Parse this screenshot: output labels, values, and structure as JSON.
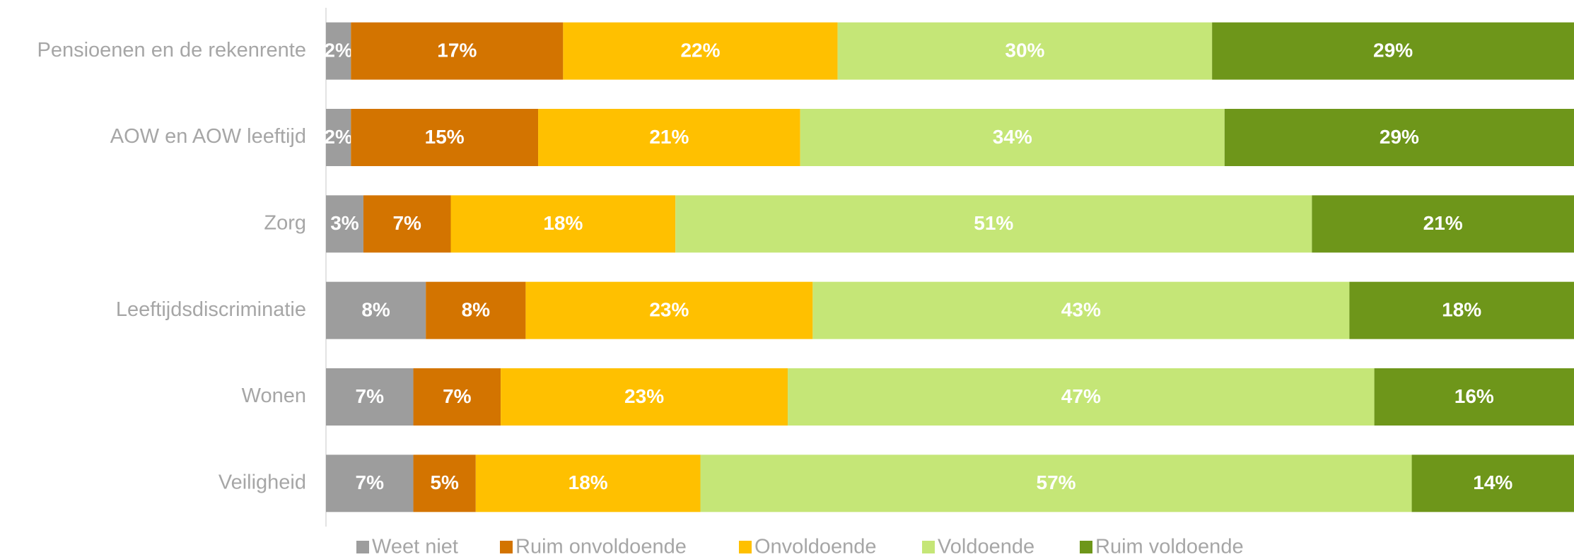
{
  "chart_data": {
    "type": "stacked_bar_horizontal",
    "categories": [
      "Pensioenen en de rekenrente",
      "AOW en AOW leeftijd",
      "Zorg",
      "Leeftijdsdiscriminatie",
      "Wonen",
      "Veiligheid"
    ],
    "xlim": [
      0,
      100
    ],
    "legend": "bottom",
    "series": [
      {
        "name": "Weet niet",
        "color": "#9d9d9d",
        "values": [
          2,
          2,
          3,
          8,
          7,
          7
        ],
        "value_labels": [
          "2%",
          "2%",
          "3%",
          "8%",
          "7%",
          "7%"
        ]
      },
      {
        "name": "Ruim onvoldoende",
        "color": "#d37400",
        "values": [
          17,
          15,
          7,
          8,
          7,
          5
        ],
        "value_labels": [
          "17%",
          "15%",
          "7%",
          "8%",
          "7%",
          "5%"
        ]
      },
      {
        "name": "Onvoldoende",
        "color": "#ffc000",
        "values": [
          22,
          21,
          18,
          23,
          23,
          18
        ],
        "value_labels": [
          "22%",
          "21%",
          "18%",
          "23%",
          "23%",
          "18%"
        ]
      },
      {
        "name": "Voldoende",
        "color": "#c5e677",
        "values": [
          30,
          34,
          51,
          43,
          47,
          57
        ],
        "value_labels": [
          "30%",
          "34%",
          "51%",
          "43%",
          "47%",
          "57%"
        ]
      },
      {
        "name": "Ruim voldoende",
        "color": "#6e961a",
        "values": [
          29,
          29,
          21,
          18,
          16,
          14
        ],
        "value_labels": [
          "29%",
          "29%",
          "21%",
          "18%",
          "16%",
          "14%"
        ]
      }
    ]
  }
}
